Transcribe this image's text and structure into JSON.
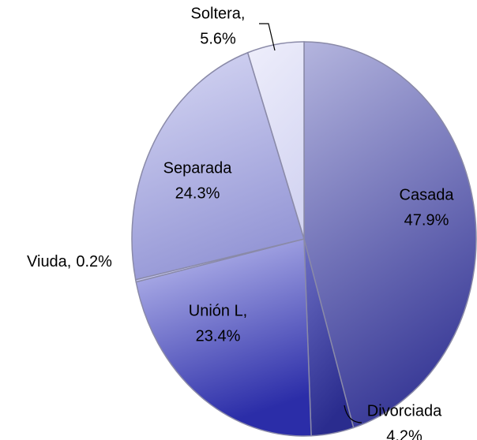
{
  "chart_data": {
    "type": "pie",
    "categories": [
      "Casada",
      "Divorciada",
      "Unión L,",
      "Viuda,",
      "Separada",
      "Soltera,"
    ],
    "values": [
      47.9,
      4.2,
      23.4,
      0.2,
      24.3,
      5.6
    ],
    "value_labels": [
      "47.9%",
      "4.2%",
      "23.4%",
      "0.2%",
      "24.3%",
      "5.6%"
    ],
    "colors": [
      [
        "#b4b5de",
        "#3c3d99"
      ],
      [
        "#6e70c4",
        "#2a2c8e"
      ],
      [
        "#c2c3f2",
        "#2b2da8"
      ],
      [
        "#d6d7f6",
        "#c0c1ee"
      ],
      [
        "#d8d9f4",
        "#9597d6"
      ],
      [
        "#eeeefb",
        "#d4d5f2"
      ]
    ]
  }
}
